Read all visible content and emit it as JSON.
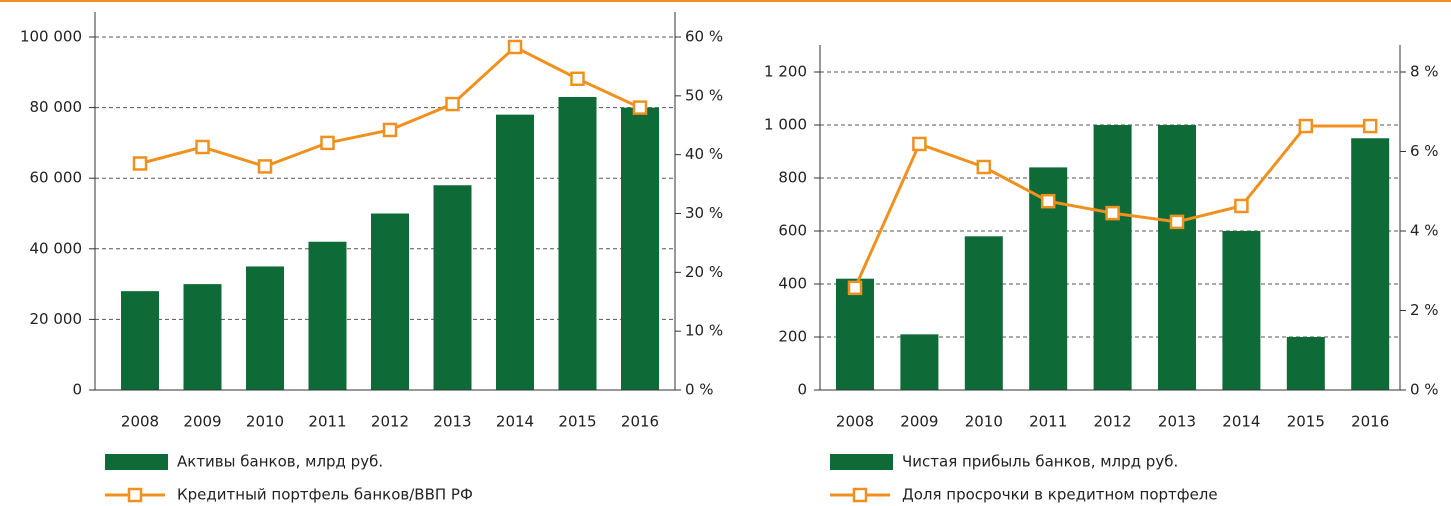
{
  "chart_data": [
    {
      "type": "bar-line",
      "categories": [
        "2008",
        "2009",
        "2010",
        "2011",
        "2012",
        "2013",
        "2014",
        "2015",
        "2016"
      ],
      "series": [
        {
          "name": "Активы банков, млрд руб.",
          "type": "bar",
          "color": "#0e6b38",
          "values": [
            28000,
            30000,
            35000,
            42000,
            50000,
            58000,
            78000,
            83000,
            80000
          ]
        },
        {
          "name": "Кредитный портфель банков/ВВП РФ",
          "type": "line",
          "axis": "y2",
          "color": "#f0901e",
          "values": [
            38.5,
            41.3,
            38,
            42,
            44.2,
            48.6,
            58.3,
            52.9,
            48
          ]
        }
      ],
      "ylim": [
        0,
        100000
      ],
      "yticks": [
        0,
        {
          "value": 20000,
          "label": "20 000"
        },
        {
          "value": 40000,
          "label": "40 000"
        },
        {
          "value": 60000,
          "label": "60 000"
        },
        {
          "value": 80000,
          "label": "80 000"
        },
        {
          "value": 100000,
          "label": "100 000"
        }
      ],
      "y2lim": [
        0,
        60
      ],
      "y2ticks": [
        {
          "value": 0,
          "label": "0 %"
        },
        {
          "value": 10,
          "label": "10 %"
        },
        {
          "value": 20,
          "label": "20 %"
        },
        {
          "value": 30,
          "label": "30 %"
        },
        {
          "value": 40,
          "label": "40 %"
        },
        {
          "value": 50,
          "label": "50 %"
        },
        {
          "value": 60,
          "label": "60 %"
        }
      ],
      "grid": true
    },
    {
      "type": "bar-line",
      "categories": [
        "2008",
        "2009",
        "2010",
        "2011",
        "2012",
        "2013",
        "2014",
        "2015",
        "2016"
      ],
      "series": [
        {
          "name": "Чистая прибыль банков, млрд руб.",
          "type": "bar",
          "color": "#0e6b38",
          "values": [
            420,
            210,
            580,
            840,
            1000,
            1000,
            600,
            200,
            950
          ]
        },
        {
          "name": "Доля просрочки в кредитном портфеле",
          "type": "line",
          "axis": "y2",
          "color": "#f0901e",
          "values": [
            2.57,
            6.19,
            5.61,
            4.75,
            4.45,
            4.23,
            4.63,
            6.64,
            6.64
          ]
        }
      ],
      "ylim": [
        0,
        1200
      ],
      "yticks": [
        0,
        200,
        400,
        600,
        800,
        {
          "value": 1000,
          "label": "1 000"
        },
        {
          "value": 1200,
          "label": "1 200"
        }
      ],
      "y2lim": [
        0,
        8
      ],
      "y2ticks": [
        {
          "value": 0,
          "label": "0 %"
        },
        {
          "value": 2,
          "label": "2 %"
        },
        {
          "value": 4,
          "label": "4 %"
        },
        {
          "value": 6,
          "label": "6 %"
        },
        {
          "value": 8,
          "label": "8 %"
        }
      ],
      "grid": true
    }
  ]
}
